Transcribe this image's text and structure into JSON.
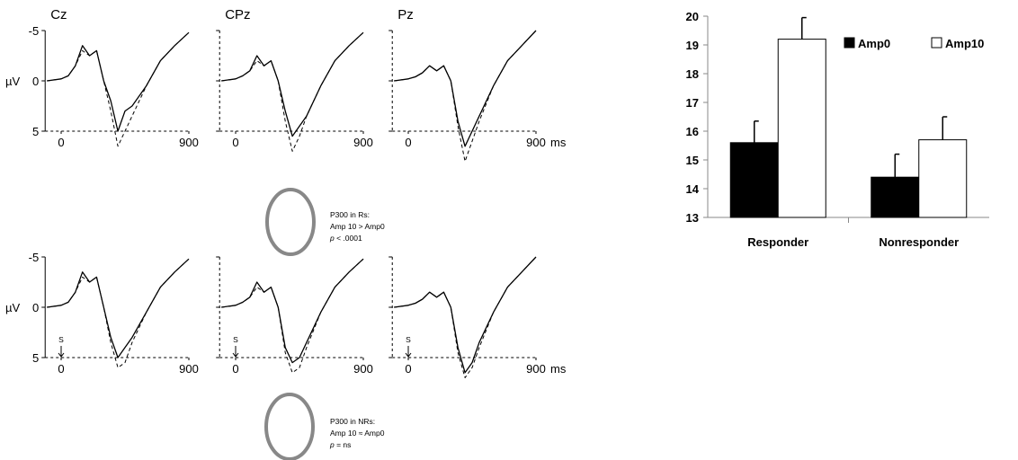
{
  "erp": {
    "column_titles": [
      "Cz",
      "CPz",
      "Pz"
    ],
    "y_unit": "µV",
    "y_ticks": [
      "-5",
      "0",
      "5"
    ],
    "x_ticks": [
      "0",
      "900"
    ],
    "x_unit": "ms",
    "stimulus_label": "S",
    "annotations": [
      {
        "lines": [
          "P300 in Rs:",
          "Amp 10 > Amp0"
        ],
        "stat_label": "p",
        "stat_value": " < .0001"
      },
      {
        "lines": [
          "P300 in NRs:",
          "Amp 10 ≈ Amp0"
        ],
        "stat_label": "p",
        "stat_value": " = ns"
      }
    ]
  },
  "chart_data": [
    {
      "type": "line",
      "x_range_ms": [
        0,
        900
      ],
      "y_range_uv": [
        -5,
        5
      ],
      "y_inverted": true,
      "panels": [
        {
          "row": 0,
          "col": 0,
          "title": "Cz",
          "series": [
            {
              "style": "solid",
              "x": [
                -100,
                0,
                50,
                100,
                150,
                200,
                250,
                300,
                350,
                400,
                450,
                500,
                600,
                700,
                800,
                900
              ],
              "y": [
                0,
                -0.2,
                -0.5,
                -1.5,
                -3.5,
                -2.5,
                -3,
                0,
                2,
                5,
                3,
                2.5,
                0.5,
                -2,
                -3.5,
                -4.8
              ]
            },
            {
              "style": "dashed",
              "x": [
                -100,
                0,
                50,
                100,
                150,
                200,
                250,
                300,
                350,
                400,
                450,
                500,
                600,
                700,
                800,
                900
              ],
              "y": [
                0,
                -0.2,
                -0.5,
                -1.5,
                -3,
                -2.5,
                -3,
                0,
                3,
                6.5,
                5,
                3.5,
                0.5,
                -2,
                -3.5,
                -4.8
              ]
            }
          ]
        },
        {
          "row": 0,
          "col": 1,
          "title": "CPz",
          "series": [
            {
              "style": "solid",
              "x": [
                -100,
                0,
                50,
                100,
                150,
                200,
                250,
                300,
                350,
                400,
                450,
                500,
                600,
                700,
                800,
                900
              ],
              "y": [
                0,
                -0.2,
                -0.5,
                -1,
                -2.5,
                -1.5,
                -2,
                0,
                3,
                5.5,
                4.5,
                3.5,
                0.5,
                -2,
                -3.5,
                -4.8
              ]
            },
            {
              "style": "dashed",
              "x": [
                -100,
                0,
                50,
                100,
                150,
                200,
                250,
                300,
                350,
                400,
                450,
                500,
                600,
                700,
                800,
                900
              ],
              "y": [
                0,
                -0.2,
                -0.5,
                -1,
                -2,
                -1.5,
                -2,
                0,
                4,
                7,
                5.5,
                3.5,
                0.5,
                -2,
                -3.5,
                -4.8
              ]
            }
          ]
        },
        {
          "row": 0,
          "col": 2,
          "title": "Pz",
          "series": [
            {
              "style": "solid",
              "x": [
                -100,
                0,
                50,
                100,
                150,
                200,
                250,
                300,
                350,
                400,
                450,
                500,
                600,
                700,
                800,
                900
              ],
              "y": [
                0,
                -0.2,
                -0.4,
                -0.8,
                -1.5,
                -1,
                -1.5,
                0,
                4,
                6.5,
                5,
                3.5,
                0.5,
                -2,
                -3.5,
                -5
              ]
            },
            {
              "style": "dashed",
              "x": [
                -100,
                0,
                50,
                100,
                150,
                200,
                250,
                300,
                350,
                400,
                450,
                500,
                600,
                700,
                800,
                900
              ],
              "y": [
                0,
                -0.2,
                -0.4,
                -0.8,
                -1.5,
                -1,
                -1.5,
                0,
                4.5,
                8,
                6,
                4,
                0.5,
                -2,
                -3.5,
                -5
              ]
            }
          ]
        },
        {
          "row": 1,
          "col": 0,
          "title": "Cz",
          "series": [
            {
              "style": "solid",
              "x": [
                -100,
                0,
                50,
                100,
                150,
                200,
                250,
                300,
                350,
                400,
                450,
                500,
                600,
                700,
                800,
                900
              ],
              "y": [
                0,
                -0.2,
                -0.5,
                -1.5,
                -3.5,
                -2.5,
                -3,
                0,
                3,
                5,
                4,
                3,
                0.5,
                -2,
                -3.5,
                -4.8
              ]
            },
            {
              "style": "dashed",
              "x": [
                -100,
                0,
                50,
                100,
                150,
                200,
                250,
                300,
                350,
                400,
                450,
                500,
                600,
                700,
                800,
                900
              ],
              "y": [
                0,
                -0.2,
                -0.5,
                -1.5,
                -3,
                -2.5,
                -3,
                0,
                3.5,
                6,
                5.5,
                3.5,
                0.5,
                -2,
                -3.5,
                -4.8
              ]
            }
          ]
        },
        {
          "row": 1,
          "col": 1,
          "title": "CPz",
          "series": [
            {
              "style": "solid",
              "x": [
                -100,
                0,
                50,
                100,
                150,
                200,
                250,
                300,
                350,
                400,
                450,
                500,
                600,
                700,
                800,
                900
              ],
              "y": [
                0,
                -0.2,
                -0.5,
                -1,
                -2.5,
                -1.5,
                -2,
                0,
                4,
                5.5,
                5,
                3.5,
                0.5,
                -2,
                -3.5,
                -4.8
              ]
            },
            {
              "style": "dashed",
              "x": [
                -100,
                0,
                50,
                100,
                150,
                200,
                250,
                300,
                350,
                400,
                450,
                500,
                600,
                700,
                800,
                900
              ],
              "y": [
                0,
                -0.2,
                -0.5,
                -1,
                -2,
                -1.5,
                -2,
                0,
                4.5,
                6.5,
                6,
                4,
                0.5,
                -2,
                -3.5,
                -4.8
              ]
            }
          ]
        },
        {
          "row": 1,
          "col": 2,
          "title": "Pz",
          "series": [
            {
              "style": "solid",
              "x": [
                -100,
                0,
                50,
                100,
                150,
                200,
                250,
                300,
                350,
                400,
                450,
                500,
                600,
                700,
                800,
                900
              ],
              "y": [
                0,
                -0.2,
                -0.4,
                -0.8,
                -1.5,
                -1,
                -1.5,
                0,
                4,
                6.5,
                5.5,
                3.5,
                0.5,
                -2,
                -3.5,
                -5
              ]
            },
            {
              "style": "dashed",
              "x": [
                -100,
                0,
                50,
                100,
                150,
                200,
                250,
                300,
                350,
                400,
                450,
                500,
                600,
                700,
                800,
                900
              ],
              "y": [
                0,
                -0.2,
                -0.4,
                -0.8,
                -1.5,
                -1,
                -1.5,
                0,
                4.5,
                7,
                6,
                4,
                0.5,
                -2,
                -3.5,
                -5
              ]
            }
          ]
        }
      ]
    },
    {
      "type": "bar",
      "categories": [
        "Responder",
        "Nonresponder"
      ],
      "series": [
        {
          "name": "Amp0",
          "values": [
            15.6,
            14.4
          ],
          "error": [
            0.75,
            0.8
          ],
          "color": "#000000"
        },
        {
          "name": "Amp10",
          "values": [
            19.2,
            15.7
          ],
          "error": [
            0.75,
            0.8
          ],
          "color": "#ffffff"
        }
      ],
      "ylim": [
        13,
        20
      ],
      "yticks": [
        "13",
        "14",
        "15",
        "16",
        "17",
        "18",
        "19",
        "20"
      ],
      "legend": "top-right"
    }
  ]
}
